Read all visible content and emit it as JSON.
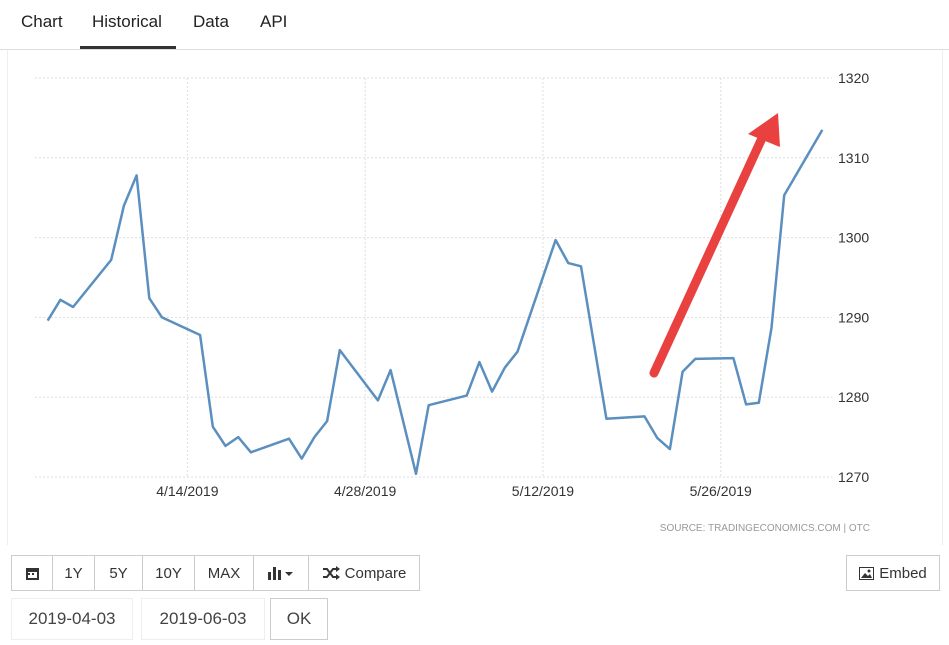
{
  "tabs": [
    "Chart",
    "Historical",
    "Data",
    "API"
  ],
  "chart_data": {
    "type": "line",
    "source": "SOURCE: TRADINGECONOMICS.COM | OTC",
    "color": "#5b8fbf",
    "grid": true,
    "x": [
      "2019-04-03",
      "2019-04-04",
      "2019-04-05",
      "2019-04-08",
      "2019-04-09",
      "2019-04-10",
      "2019-04-11",
      "2019-04-12",
      "2019-04-15",
      "2019-04-16",
      "2019-04-17",
      "2019-04-18",
      "2019-04-19",
      "2019-04-22",
      "2019-04-23",
      "2019-04-24",
      "2019-04-25",
      "2019-04-26",
      "2019-04-29",
      "2019-04-30",
      "2019-05-01",
      "2019-05-02",
      "2019-05-03",
      "2019-05-06",
      "2019-05-07",
      "2019-05-08",
      "2019-05-09",
      "2019-05-10",
      "2019-05-13",
      "2019-05-14",
      "2019-05-15",
      "2019-05-17",
      "2019-05-20",
      "2019-05-21",
      "2019-05-22",
      "2019-05-23",
      "2019-05-24",
      "2019-05-27",
      "2019-05-28",
      "2019-05-29",
      "2019-05-30",
      "2019-05-31",
      "2019-06-03"
    ],
    "values": [
      1289.6,
      1292.2,
      1291.3,
      1297.2,
      1304.0,
      1307.8,
      1292.4,
      1290.0,
      1287.8,
      1276.3,
      1273.9,
      1275.0,
      1273.1,
      1274.8,
      1272.3,
      1275.0,
      1277.0,
      1285.9,
      1279.6,
      1283.4,
      1276.9,
      1270.4,
      1279.0,
      1280.2,
      1284.4,
      1280.7,
      1283.7,
      1285.7,
      1299.7,
      1296.8,
      1296.4,
      1277.3,
      1277.6,
      1274.9,
      1273.5,
      1283.2,
      1284.8,
      1284.9,
      1279.1,
      1279.3,
      1288.7,
      1305.3,
      1313.5
    ],
    "xlim": [
      "2019-04-02",
      "2019-06-04"
    ],
    "xticks": [
      {
        "value": "2019-04-14",
        "label": "4/14/2019"
      },
      {
        "value": "2019-04-28",
        "label": "4/28/2019"
      },
      {
        "value": "2019-05-12",
        "label": "5/12/2019"
      },
      {
        "value": "2019-05-26",
        "label": "5/26/2019"
      }
    ],
    "ylim": [
      1270,
      1320
    ],
    "yticks": [
      1270,
      1280,
      1290,
      1300,
      1310,
      1320
    ]
  },
  "toolbar": {
    "ranges": [
      "1Y",
      "5Y",
      "10Y",
      "MAX"
    ],
    "compare": "Compare",
    "embed": "Embed"
  },
  "date_range": {
    "start": "2019-04-03",
    "end": "2019-06-03",
    "submit": "OK"
  }
}
